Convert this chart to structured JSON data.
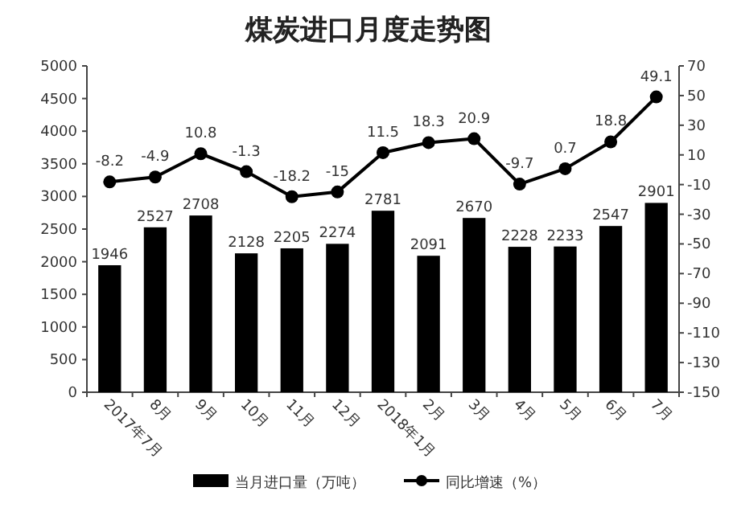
{
  "chart_data": {
    "type": "bar",
    "title": "煤炭进口月度走势图",
    "categories": [
      "2017年7月",
      "8月",
      "9月",
      "10月",
      "11月",
      "12月",
      "2018年1月",
      "2月",
      "3月",
      "4月",
      "5月",
      "6月",
      "7月"
    ],
    "series": [
      {
        "name": "当月进口量（万吨）",
        "color": "#000000",
        "values": [
          1946,
          2527,
          2708,
          2128,
          2205,
          2274,
          2781,
          2091,
          2670,
          2228,
          2233,
          2547,
          2901
        ]
      },
      {
        "name": "同比增速（%）",
        "type": "line",
        "axis": "y2",
        "color": "#000000",
        "marker": "circle",
        "values": [
          -8.2,
          -4.9,
          10.8,
          -1.3,
          -18.2,
          -15,
          11.5,
          18.3,
          20.9,
          -9.7,
          0.7,
          18.8,
          49.1
        ]
      }
    ],
    "ylim": [
      0,
      5000
    ],
    "yticks": [
      0,
      500,
      1000,
      1500,
      2000,
      2500,
      3000,
      3500,
      4000,
      4500,
      5000
    ],
    "y2lim": [
      -150,
      70
    ],
    "y2ticks": [
      -150,
      -130,
      -110,
      -90,
      -70,
      -50,
      -30,
      -10,
      10,
      30,
      50,
      70
    ],
    "data_labels": true,
    "legend": "bottom",
    "grid": false
  }
}
